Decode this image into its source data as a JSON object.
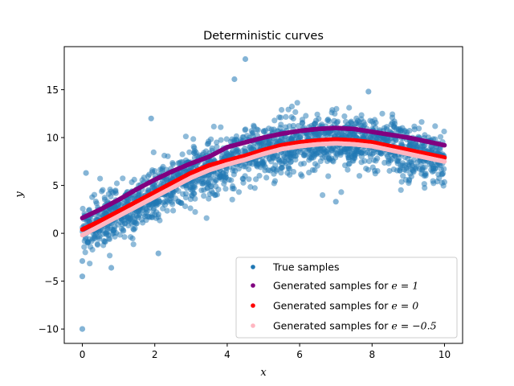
{
  "chart_data": {
    "type": "scatter",
    "title": "Deterministic curves",
    "xlabel": "x",
    "ylabel": "y",
    "xlim": [
      -0.5,
      10.5
    ],
    "ylim": [
      -11.5,
      19.5
    ],
    "xticks": [
      0,
      2,
      4,
      6,
      8,
      10
    ],
    "yticks": [
      -10,
      -5,
      0,
      5,
      10,
      15
    ],
    "grid": false,
    "legend_position": "lower-right",
    "true_samples": {
      "name": "True samples",
      "color": "#1f77b4",
      "count": 2000,
      "x_range": [
        0,
        10
      ],
      "mean_curve_x": [
        0,
        1,
        2,
        3,
        4,
        5,
        6,
        7,
        8,
        9,
        10
      ],
      "mean_curve_y": [
        0.2,
        2.0,
        4.2,
        6.2,
        7.6,
        8.6,
        9.4,
        9.8,
        9.5,
        8.7,
        7.8
      ],
      "outliers": [
        {
          "x": 4.5,
          "y": 18.2
        },
        {
          "x": 4.2,
          "y": 16.1
        },
        {
          "x": 1.9,
          "y": 12.0
        },
        {
          "x": 7.9,
          "y": 14.8
        },
        {
          "x": 0.0,
          "y": -10.0
        },
        {
          "x": 0.0,
          "y": -4.5
        },
        {
          "x": 0.0,
          "y": -2.9
        },
        {
          "x": 0.8,
          "y": -3.6
        },
        {
          "x": 2.1,
          "y": -2.1
        },
        {
          "x": 7.0,
          "y": 3.3
        },
        {
          "x": 0.1,
          "y": 6.3
        }
      ]
    },
    "series": [
      {
        "name": "Generated samples for e = 1",
        "label_prefix": "Generated samples for ",
        "label_math": "e = 1",
        "color": "#800080",
        "x": [
          0,
          0.5,
          1,
          1.5,
          2,
          2.5,
          3,
          3.5,
          4,
          4.5,
          5,
          5.5,
          6,
          6.5,
          7,
          7.5,
          8,
          8.5,
          9,
          9.5,
          10
        ],
        "y": [
          1.6,
          2.5,
          3.5,
          4.6,
          5.6,
          6.5,
          7.3,
          8.0,
          9.0,
          9.5,
          10.0,
          10.4,
          10.7,
          10.9,
          11.0,
          10.9,
          10.6,
          10.3,
          10.0,
          9.6,
          9.2
        ]
      },
      {
        "name": "Generated samples for e = 0",
        "label_prefix": "Generated samples for ",
        "label_math": "e = 0",
        "color": "#ff0000",
        "x": [
          0,
          0.5,
          1,
          1.5,
          2,
          2.5,
          3,
          3.5,
          4,
          4.5,
          5,
          5.5,
          6,
          6.5,
          7,
          7.5,
          8,
          8.5,
          9,
          9.5,
          10
        ],
        "y": [
          0.4,
          1.3,
          2.3,
          3.3,
          4.3,
          5.3,
          6.3,
          7.1,
          7.6,
          8.1,
          8.7,
          9.2,
          9.5,
          9.7,
          9.8,
          9.7,
          9.5,
          9.1,
          8.7,
          8.3,
          7.9
        ]
      },
      {
        "name": "Generated samples for e = −0.5",
        "label_prefix": "Generated samples for ",
        "label_math": "e = −0.5",
        "color": "#ffb6c1",
        "x": [
          0,
          0.5,
          1,
          1.5,
          2,
          2.5,
          3,
          3.5,
          4,
          4.5,
          5,
          5.5,
          6,
          6.5,
          7,
          7.5,
          8,
          8.5,
          9,
          9.5,
          10
        ],
        "y": [
          -0.2,
          0.8,
          1.8,
          2.8,
          3.8,
          4.8,
          5.8,
          6.6,
          7.2,
          7.7,
          8.3,
          8.8,
          9.1,
          9.3,
          9.4,
          9.3,
          9.1,
          8.7,
          8.3,
          7.9,
          7.5
        ]
      }
    ]
  }
}
